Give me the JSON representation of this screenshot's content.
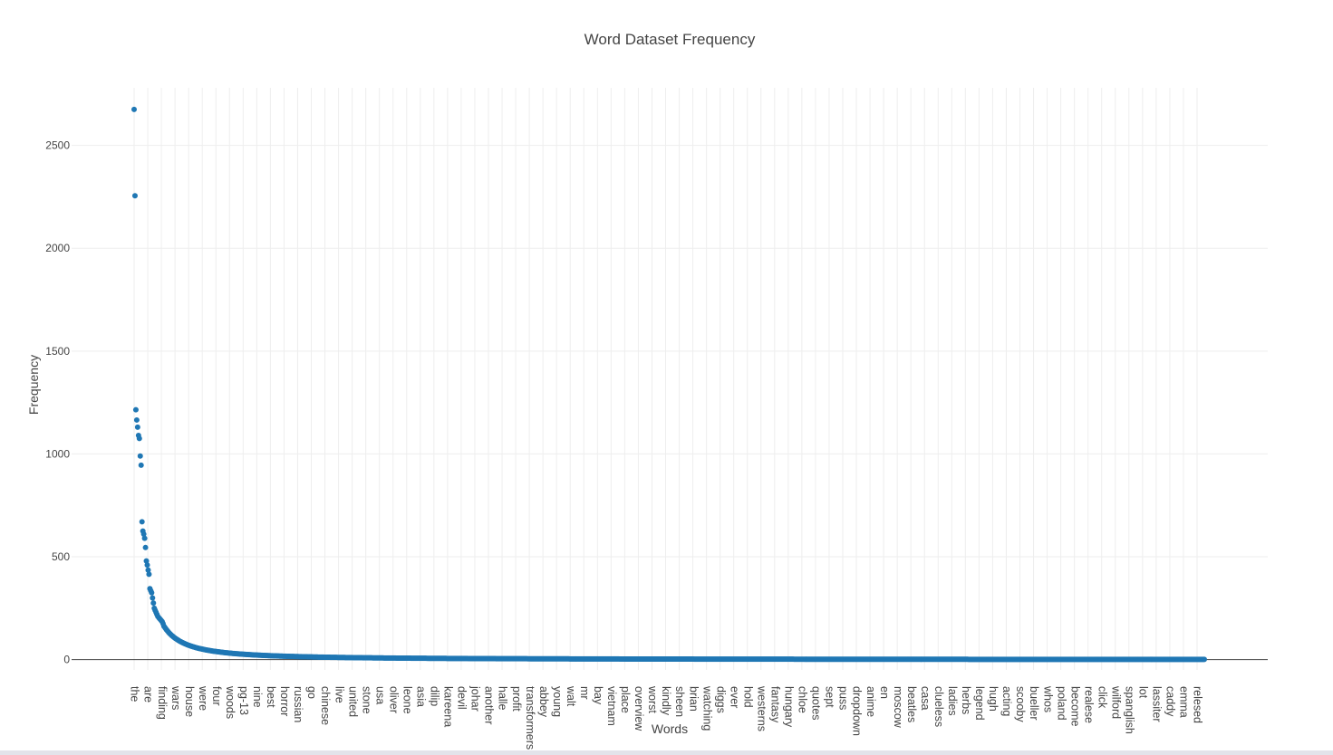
{
  "chart_data": {
    "type": "scatter",
    "title": "Word Dataset Frequency",
    "xlabel": "Words",
    "ylabel": "Frequency",
    "ylim": [
      -50,
      2780
    ],
    "yticks": [
      0,
      500,
      1000,
      1500,
      2000,
      2500
    ],
    "grid": true,
    "legend": "none",
    "marker_color": "#1f77b4",
    "x_tick_labels": [
      "the",
      "are",
      "finding",
      "wars",
      "house",
      "were",
      "four",
      "woods",
      "pg-13",
      "nine",
      "best",
      "horror",
      "russian",
      "go",
      "chinese",
      "live",
      "united",
      "stone",
      "usa",
      "oliver",
      "leone",
      "asia",
      "dilip",
      "kareena",
      "devil",
      "johar",
      "another",
      "halle",
      "profit",
      "transformers",
      "abbey",
      "young",
      "walt",
      "mr",
      "bay",
      "vietnam",
      "place",
      "overview",
      "worst",
      "kindly",
      "sheen",
      "brian",
      "watching",
      "diggs",
      "ever",
      "hold",
      "westerns",
      "fantasy",
      "hungary",
      "chloe",
      "quotes",
      "sept",
      "puss",
      "dropdown",
      "anime",
      "en",
      "moscow",
      "beatles",
      "casa",
      "clueless",
      "ladies",
      "herbs",
      "legend",
      "hugh",
      "acting",
      "scooby",
      "bueller",
      "whos",
      "poland",
      "become",
      "realese",
      "click",
      "wilford",
      "spanglish",
      "lot",
      "lassiter",
      "caddy",
      "emma",
      "relesed"
    ],
    "n_points": 1222,
    "head_values": [
      2675,
      2255,
      1215,
      1165,
      1130,
      1090,
      1075,
      990,
      945,
      670,
      625,
      610,
      590,
      545,
      480,
      460,
      435,
      415,
      345,
      335,
      325,
      300,
      275,
      250,
      240,
      230,
      220,
      210,
      205,
      200,
      195,
      190,
      185,
      175
    ],
    "tail_model": "power-law decay from ~170 at point 34 to ~1 at point 1222"
  }
}
